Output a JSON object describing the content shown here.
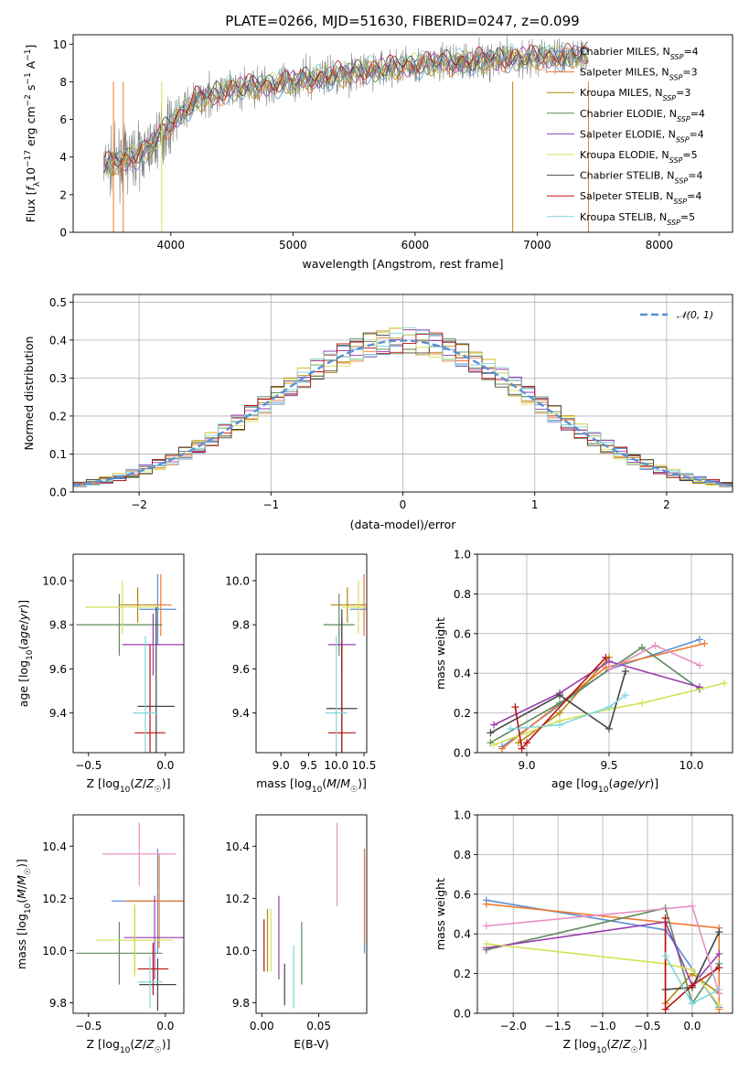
{
  "title": "PLATE=0266, MJD=51630, FIBERID=0247, z=0.099",
  "models": [
    {
      "name": "Chabrier MILES",
      "nssp": "4",
      "color": "#5b8fd6"
    },
    {
      "name": "Salpeter MILES",
      "nssp": "3",
      "color": "#ee7a30"
    },
    {
      "name": "Kroupa MILES",
      "nssp": "3",
      "color": "#b8860b"
    },
    {
      "name": "Chabrier ELODIE",
      "nssp": "4",
      "color": "#5f8a5f"
    },
    {
      "name": "Salpeter ELODIE",
      "nssp": "4",
      "color": "#9a3db0"
    },
    {
      "name": "Kroupa ELODIE",
      "nssp": "5",
      "color": "#d4e157"
    },
    {
      "name": "Chabrier STELIB",
      "nssp": "4",
      "color": "#444444"
    },
    {
      "name": "Salpeter STELIB",
      "nssp": "4",
      "color": "#bb1111"
    },
    {
      "name": "Kroupa STELIB",
      "nssp": "5",
      "color": "#7fd7dc"
    }
  ],
  "chart_data": [
    {
      "id": "spectrum",
      "type": "line",
      "xlabel": "wavelength [Angstrom, rest frame]",
      "ylabel": "Flux [f_λ 10^-17 erg cm^-2 s^-1 A^-1]",
      "xlim": [
        3200,
        8600
      ],
      "ylim": [
        0,
        10.5
      ],
      "xticks": [
        4000,
        5000,
        6000,
        7000,
        8000
      ],
      "yticks": [
        0,
        2,
        4,
        6,
        8,
        10
      ],
      "data_color": "#808080",
      "continuum": {
        "x": [
          3450,
          3600,
          3800,
          4000,
          4200,
          4500,
          5000,
          5500,
          6000,
          6500,
          7000,
          7400
        ],
        "y": [
          3.5,
          3.8,
          4.3,
          5.8,
          7.0,
          7.6,
          8.0,
          8.5,
          8.9,
          9.1,
          9.3,
          9.4
        ]
      },
      "legend_location": "upper right"
    },
    {
      "id": "residuals",
      "type": "line",
      "xlabel": "(data-model)/error",
      "ylabel": "Normed distribution",
      "xlim": [
        -2.5,
        2.5
      ],
      "ylim": [
        0,
        0.52
      ],
      "xticks": [
        -2,
        -1,
        0,
        1,
        2
      ],
      "yticks": [
        0.0,
        0.1,
        0.2,
        0.3,
        0.4,
        0.5
      ],
      "grid": true,
      "reference_label": "𝒩(0, 1)",
      "reference_color": "#5b8fd6",
      "histogram_bin_width": 0.1,
      "legend_location": "upper right"
    },
    {
      "id": "age-vs-Z",
      "type": "scatter",
      "xlabel": "Z [log10(Z/Z☉)]",
      "ylabel": "age  [log10(age/yr)]",
      "xlim": [
        -0.6,
        0.12
      ],
      "ylim": [
        9.22,
        10.12
      ],
      "xticks": [
        -0.5,
        0.0
      ],
      "yticks": [
        9.4,
        9.6,
        9.8,
        10.0
      ],
      "points": [
        {
          "m": 0,
          "x": -0.05,
          "y": 9.87,
          "xerr": 0.12,
          "yerr": 0.16
        },
        {
          "m": 1,
          "x": -0.03,
          "y": 9.89,
          "xerr": 0.07,
          "yerr": 0.14
        },
        {
          "m": 2,
          "x": -0.18,
          "y": 9.89,
          "xerr": 0.12,
          "yerr": 0.08
        },
        {
          "m": 3,
          "x": -0.3,
          "y": 9.8,
          "xerr": 0.28,
          "yerr": 0.14
        },
        {
          "m": 4,
          "x": -0.08,
          "y": 9.71,
          "xerr": 0.2,
          "yerr": 0.14
        },
        {
          "m": 5,
          "x": -0.28,
          "y": 9.88,
          "xerr": 0.24,
          "yerr": 0.12
        },
        {
          "m": 6,
          "x": -0.06,
          "y": 9.43,
          "xerr": 0.12,
          "yerr": 0.45
        },
        {
          "m": 7,
          "x": -0.1,
          "y": 9.31,
          "xerr": 0.1,
          "yerr": 0.4
        },
        {
          "m": 8,
          "x": -0.13,
          "y": 9.4,
          "xerr": 0.08,
          "yerr": 0.35
        }
      ]
    },
    {
      "id": "age-vs-mass",
      "type": "scatter",
      "xlabel": "mass [log10(M/M☉)]",
      "ylabel": "",
      "xlim": [
        8.55,
        10.55
      ],
      "ylim": [
        9.22,
        10.12
      ],
      "xticks": [
        9.0,
        9.5,
        10.0,
        10.5
      ],
      "yticks": [
        9.4,
        9.6,
        9.8,
        10.0
      ],
      "points": [
        {
          "m": 0,
          "x": 10.6,
          "y": 9.87,
          "xerr": 0.35,
          "yerr": 0.16
        },
        {
          "m": 1,
          "x": 10.5,
          "y": 9.89,
          "xerr": 0.3,
          "yerr": 0.14
        },
        {
          "m": 2,
          "x": 10.2,
          "y": 9.89,
          "xerr": 0.3,
          "yerr": 0.08
        },
        {
          "m": 3,
          "x": 10.05,
          "y": 9.8,
          "xerr": 0.28,
          "yerr": 0.14
        },
        {
          "m": 4,
          "x": 10.1,
          "y": 9.71,
          "xerr": 0.25,
          "yerr": 0.12
        },
        {
          "m": 5,
          "x": 10.4,
          "y": 9.88,
          "xerr": 0.3,
          "yerr": 0.12
        },
        {
          "m": 6,
          "x": 10.1,
          "y": 9.42,
          "xerr": 0.28,
          "yerr": 0.45
        },
        {
          "m": 7,
          "x": 10.1,
          "y": 9.31,
          "xerr": 0.25,
          "yerr": 0.4
        },
        {
          "m": 8,
          "x": 10.0,
          "y": 9.4,
          "xerr": 0.2,
          "yerr": 0.35
        }
      ]
    },
    {
      "id": "weight-vs-age",
      "type": "line",
      "xlabel": "age  [log10(age/yr)]",
      "ylabel": "mass weight",
      "xlim": [
        8.7,
        10.25
      ],
      "ylim": [
        0.0,
        1.0
      ],
      "xticks": [
        9.0,
        9.5,
        10.0
      ],
      "yticks": [
        0.0,
        0.2,
        0.4,
        0.6,
        0.8,
        1.0
      ],
      "grid": true,
      "series": [
        {
          "m": 0,
          "x": [
            8.85,
            9.5,
            10.05
          ],
          "y": [
            0.03,
            0.42,
            0.57
          ]
        },
        {
          "m": 1,
          "x": [
            8.85,
            9.48,
            10.08
          ],
          "y": [
            0.02,
            0.43,
            0.55
          ]
        },
        {
          "m": 2,
          "x": [
            8.95,
            9.2,
            9.5
          ],
          "y": [
            0.05,
            0.2,
            0.48
          ]
        },
        {
          "m": 3,
          "x": [
            8.78,
            9.2,
            9.7,
            10.05
          ],
          "y": [
            0.05,
            0.25,
            0.53,
            0.32
          ]
        },
        {
          "m": 4,
          "x": [
            8.8,
            9.2,
            9.5,
            10.05
          ],
          "y": [
            0.14,
            0.3,
            0.46,
            0.33
          ]
        },
        {
          "m": 5,
          "x": [
            8.8,
            9.2,
            9.5,
            9.7,
            10.2
          ],
          "y": [
            0.04,
            0.16,
            0.22,
            0.25,
            0.35
          ]
        },
        {
          "m": 6,
          "x": [
            8.78,
            9.2,
            9.5,
            9.6
          ],
          "y": [
            0.1,
            0.29,
            0.12,
            0.41
          ]
        },
        {
          "m": 7,
          "x": [
            8.93,
            8.97,
            9.0,
            9.48
          ],
          "y": [
            0.23,
            0.02,
            0.05,
            0.48
          ]
        },
        {
          "m": 8,
          "x": [
            8.9,
            9.2,
            9.5,
            9.6
          ],
          "y": [
            0.12,
            0.14,
            0.23,
            0.29
          ]
        },
        {
          "m": 1,
          "x": [
            9.5,
            9.78,
            10.05
          ],
          "y": [
            0.42,
            0.54,
            0.44
          ],
          "extra": true
        }
      ]
    },
    {
      "id": "mass-vs-Z",
      "type": "scatter",
      "xlabel": "Z [log10(Z/Z☉)]",
      "ylabel": "mass [log10(M/M☉)]",
      "xlim": [
        -0.6,
        0.12
      ],
      "ylim": [
        9.76,
        10.52
      ],
      "xticks": [
        -0.5,
        0.0
      ],
      "yticks": [
        9.8,
        10.0,
        10.2,
        10.4
      ],
      "points": [
        {
          "m": 0,
          "x": -0.05,
          "y": 10.19,
          "xerr": 0.3,
          "yerr": 0.2
        },
        {
          "m": 1,
          "x": -0.04,
          "y": 10.19,
          "xerr": 0.22,
          "yerr": 0.18
        },
        {
          "m": 2,
          "x": -0.2,
          "y": 10.04,
          "xerr": 0.1,
          "yerr": 0.12
        },
        {
          "m": 3,
          "x": -0.3,
          "y": 9.99,
          "xerr": 0.28,
          "yerr": 0.12
        },
        {
          "m": 4,
          "x": -0.07,
          "y": 10.05,
          "xerr": 0.2,
          "yerr": 0.16
        },
        {
          "m": 5,
          "x": -0.2,
          "y": 10.04,
          "xerr": 0.25,
          "yerr": 0.14
        },
        {
          "m": 6,
          "x": -0.05,
          "y": 9.87,
          "xerr": 0.12,
          "yerr": 0.1
        },
        {
          "m": 7,
          "x": -0.08,
          "y": 9.93,
          "xerr": 0.1,
          "yerr": 0.1
        },
        {
          "m": 8,
          "x": -0.1,
          "y": 9.88,
          "xerr": 0.08,
          "yerr": 0.1
        },
        {
          "m": 1,
          "x": -0.17,
          "y": 10.37,
          "xerr": 0.24,
          "yerr": 0.12,
          "color_override": "#e58fc3"
        }
      ]
    },
    {
      "id": "mass-vs-ebv",
      "type": "scatter",
      "xlabel": "E(B-V)",
      "ylabel": "",
      "xlim": [
        -0.005,
        0.092
      ],
      "ylim": [
        9.76,
        10.52
      ],
      "xticks": [
        0.0,
        0.05
      ],
      "yticks": [
        9.8,
        10.0,
        10.2,
        10.4
      ],
      "points": [
        {
          "m": 0,
          "x": 0.09,
          "y": 10.19,
          "xerr": 0.0,
          "yerr": 0.2
        },
        {
          "m": 1,
          "x": 0.09,
          "y": 10.21,
          "xerr": 0.0,
          "yerr": 0.18
        },
        {
          "m": 2,
          "x": 0.005,
          "y": 10.04,
          "xerr": 0.0,
          "yerr": 0.12
        },
        {
          "m": 3,
          "x": 0.035,
          "y": 9.99,
          "xerr": 0.0,
          "yerr": 0.12
        },
        {
          "m": 4,
          "x": 0.015,
          "y": 10.05,
          "xerr": 0.0,
          "yerr": 0.16
        },
        {
          "m": 5,
          "x": 0.008,
          "y": 10.04,
          "xerr": 0.0,
          "yerr": 0.12
        },
        {
          "m": 6,
          "x": 0.02,
          "y": 9.87,
          "xerr": 0.0,
          "yerr": 0.08
        },
        {
          "m": 7,
          "x": 0.002,
          "y": 10.02,
          "xerr": 0.0,
          "yerr": 0.1
        },
        {
          "m": 8,
          "x": 0.028,
          "y": 9.9,
          "xerr": 0.0,
          "yerr": 0.12
        },
        {
          "m": 1,
          "x": 0.066,
          "y": 10.33,
          "xerr": 0.0,
          "yerr": 0.16,
          "color_override": "#e58fc3"
        }
      ]
    },
    {
      "id": "weight-vs-Z",
      "type": "line",
      "xlabel": "Z [log10(Z/Z☉)]",
      "ylabel": "mass weight",
      "xlim": [
        -2.4,
        0.45
      ],
      "ylim": [
        0.0,
        1.0
      ],
      "xticks": [
        -2.0,
        -1.5,
        -1.0,
        -0.5,
        0.0
      ],
      "yticks": [
        0.0,
        0.2,
        0.4,
        0.6,
        0.8,
        1.0
      ],
      "grid": true,
      "series": [
        {
          "m": 0,
          "x": [
            -2.3,
            -0.3,
            0.3
          ],
          "y": [
            0.57,
            0.42,
            0.03
          ]
        },
        {
          "m": 1,
          "x": [
            -2.3,
            0.3,
            0.3
          ],
          "y": [
            0.55,
            0.43,
            0.02
          ]
        },
        {
          "m": 2,
          "x": [
            -0.3,
            -0.3,
            0.0,
            0.3
          ],
          "y": [
            0.48,
            0.05,
            0.2,
            0.1
          ]
        },
        {
          "m": 3,
          "x": [
            -2.3,
            -0.3,
            0.0,
            0.3
          ],
          "y": [
            0.32,
            0.53,
            0.05,
            0.25
          ]
        },
        {
          "m": 4,
          "x": [
            -2.3,
            -0.3,
            0.0,
            0.3
          ],
          "y": [
            0.33,
            0.46,
            0.14,
            0.3
          ]
        },
        {
          "m": 5,
          "x": [
            -2.3,
            -0.3,
            0.0,
            0.3
          ],
          "y": [
            0.35,
            0.25,
            0.22,
            0.04
          ]
        },
        {
          "m": 6,
          "x": [
            -0.3,
            0.0,
            0.3
          ],
          "y": [
            0.12,
            0.13,
            0.41
          ]
        },
        {
          "m": 7,
          "x": [
            -0.3,
            -0.3,
            0.0,
            0.3
          ],
          "y": [
            0.48,
            0.02,
            0.14,
            0.23
          ]
        },
        {
          "m": 8,
          "x": [
            -0.3,
            0.0,
            0.3
          ],
          "y": [
            0.29,
            0.05,
            0.12
          ]
        },
        {
          "m": 1,
          "x": [
            -2.3,
            0.0,
            0.3
          ],
          "y": [
            0.44,
            0.54,
            0.1
          ],
          "extra": true
        }
      ]
    }
  ]
}
